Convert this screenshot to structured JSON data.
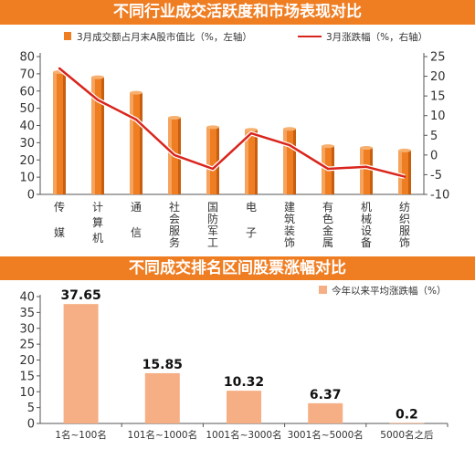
{
  "chart_data": [
    {
      "type": "bar",
      "title": "不同行业成交活跃度和市场表现对比",
      "categories": [
        "传媒",
        "计算机",
        "通信",
        "社会服务",
        "国防军工",
        "电子",
        "建筑装饰",
        "有色金属",
        "机械设备",
        "纺织服饰"
      ],
      "series": [
        {
          "name": "3月成交额占月末A股市值比（%，左轴）",
          "type": "bar",
          "axis": "left",
          "color": "#ef7d22",
          "values": [
            71,
            68,
            59,
            44.5,
            39,
            37.5,
            38,
            28,
            27,
            25.5
          ]
        },
        {
          "name": "3月涨跌幅（%，右轴）",
          "type": "line",
          "axis": "right",
          "color": "#d9251d",
          "values": [
            22,
            14,
            9,
            0,
            -3.5,
            5.5,
            2.5,
            -3.5,
            -3,
            -5.5
          ]
        }
      ],
      "y_left": {
        "ticks": [
          "0",
          "10",
          "20",
          "30",
          "40",
          "50",
          "60",
          "70",
          "80"
        ],
        "ylim": [
          0,
          80
        ]
      },
      "y_right": {
        "ticks": [
          "-10",
          "-5",
          "0",
          "5",
          "10",
          "15",
          "20",
          "25"
        ],
        "ylim": [
          -10,
          25
        ]
      },
      "legend_position": "top"
    },
    {
      "type": "bar",
      "title": "不同成交排名区间股票涨幅对比",
      "categories": [
        "1名~100名",
        "101名~1000名",
        "1001名~3000名",
        "3001名~5000名",
        "5000名之后"
      ],
      "series": [
        {
          "name": "今年以来平均涨跌幅（%）",
          "color": "#f6ae84",
          "values": [
            37.65,
            15.85,
            10.32,
            6.37,
            0.2
          ],
          "labels": [
            "37.65",
            "15.85",
            "10.32",
            "6.37",
            "0.2"
          ]
        }
      ],
      "y": {
        "ticks": [
          "0",
          "5",
          "10",
          "15",
          "20",
          "25",
          "30",
          "35",
          "40"
        ],
        "ylim": [
          0,
          40
        ]
      },
      "legend_position": "top-right"
    }
  ]
}
